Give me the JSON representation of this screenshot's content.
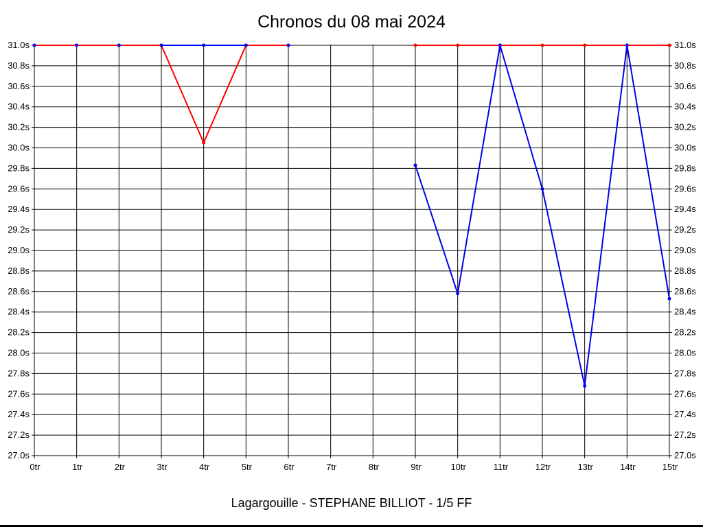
{
  "page": {
    "background": "#ffffff",
    "bottom_bar_color": "#000000"
  },
  "chart_data": {
    "type": "line",
    "title": "Chronos du 08 mai 2024",
    "footer": "Lagargouille - STEPHANE BILLIOT - 1/5 FF",
    "xlabel": "",
    "ylabel": "",
    "y_unit": "s",
    "ylim": [
      27.0,
      31.0
    ],
    "ytick_step": 0.2,
    "grid": true,
    "legend": "none",
    "categories": [
      "0tr",
      "1tr",
      "2tr",
      "3tr",
      "4tr",
      "5tr",
      "6tr",
      "7tr",
      "8tr",
      "9tr",
      "10tr",
      "11tr",
      "12tr",
      "13tr",
      "14tr",
      "15tr"
    ],
    "y_tick_labels": [
      "31.0s",
      "30.8s",
      "30.6s",
      "30.4s",
      "30.2s",
      "30.0s",
      "29.8s",
      "29.6s",
      "29.4s",
      "29.2s",
      "29.0s",
      "28.8s",
      "28.6s",
      "28.4s",
      "28.2s",
      "28.0s",
      "27.8s",
      "27.6s",
      "27.4s",
      "27.2s",
      "27.0s"
    ],
    "series": [
      {
        "name": "red-series",
        "color": "#ff0000",
        "values": [
          31.0,
          31.0,
          31.0,
          31.0,
          30.05,
          31.0,
          31.0,
          null,
          null,
          31.0,
          31.0,
          31.0,
          31.0,
          31.0,
          31.0,
          31.0
        ]
      },
      {
        "name": "blue-series",
        "color": "#0000ee",
        "values": [
          31.0,
          31.0,
          31.0,
          31.0,
          31.0,
          31.0,
          31.0,
          null,
          null,
          29.83,
          28.58,
          31.0,
          29.6,
          27.68,
          31.0,
          28.53
        ]
      }
    ]
  }
}
